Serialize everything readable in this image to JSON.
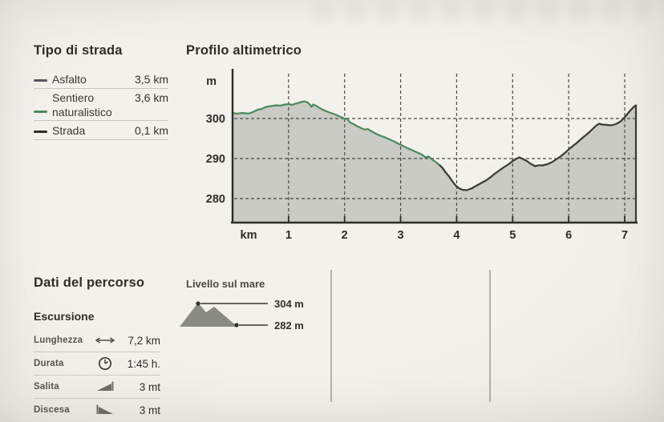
{
  "road_type_legend": {
    "title": "Tipo di strada",
    "items": [
      {
        "label": "Asfalto",
        "value": "3,5 km",
        "color": "#55555a"
      },
      {
        "label_line1": "Sentiero",
        "label_line2": "naturalistico",
        "value": "3,6 km",
        "color": "#4a8a5f"
      },
      {
        "label": "Strada",
        "value": "0,1 km",
        "color": "#2d2d2b"
      }
    ]
  },
  "elevation_chart": {
    "title": "Profilo altimetrico"
  },
  "chart_data": {
    "type": "area",
    "title": "Profilo altimetrico",
    "x_axis_unit": "km",
    "y_axis_unit": "m",
    "x_ticks": [
      1,
      2,
      3,
      4,
      5,
      6,
      7
    ],
    "y_ticks": [
      300,
      290,
      280
    ],
    "xlim": [
      0,
      7.2
    ],
    "ylim": [
      273,
      312
    ],
    "grid": "dashed-both-axes",
    "legend_position": "outside-left",
    "area_fill_color": "#c9cbc4",
    "axis_color": "#2c2c2a",
    "grid_color": "#4a4a46",
    "segments": [
      {
        "name": "Sentiero naturalistico",
        "color": "#4a8a5f",
        "from_km": 0,
        "to_km": 3.75
      },
      {
        "name": "Asfalto / Strada",
        "color": "#3a3a37",
        "from_km": 3.75,
        "to_km": 7.2
      }
    ],
    "profile_points": [
      [
        0,
        301.4
      ],
      [
        0.08,
        301.2
      ],
      [
        0.18,
        301.4
      ],
      [
        0.28,
        301.2
      ],
      [
        0.36,
        301.6
      ],
      [
        0.45,
        302.2
      ],
      [
        0.52,
        302.4
      ],
      [
        0.6,
        302.9
      ],
      [
        0.68,
        303.1
      ],
      [
        0.78,
        303.3
      ],
      [
        0.85,
        303.2
      ],
      [
        0.93,
        303.5
      ],
      [
        1.0,
        303.6
      ],
      [
        1.06,
        303.4
      ],
      [
        1.12,
        303.7
      ],
      [
        1.2,
        304.0
      ],
      [
        1.28,
        304.3
      ],
      [
        1.33,
        304.1
      ],
      [
        1.38,
        303.5
      ],
      [
        1.41,
        302.9
      ],
      [
        1.44,
        303.5
      ],
      [
        1.5,
        303.1
      ],
      [
        1.58,
        302.4
      ],
      [
        1.66,
        301.9
      ],
      [
        1.75,
        301.4
      ],
      [
        1.85,
        300.9
      ],
      [
        1.95,
        300.3
      ],
      [
        2.0,
        299.9
      ],
      [
        2.04,
        300.0
      ],
      [
        2.1,
        299.0
      ],
      [
        2.16,
        298.6
      ],
      [
        2.22,
        298.1
      ],
      [
        2.3,
        297.6
      ],
      [
        2.36,
        297.2
      ],
      [
        2.41,
        297.4
      ],
      [
        2.48,
        296.8
      ],
      [
        2.56,
        296.2
      ],
      [
        2.64,
        295.7
      ],
      [
        2.72,
        295.3
      ],
      [
        2.8,
        294.8
      ],
      [
        2.88,
        294.3
      ],
      [
        2.96,
        293.7
      ],
      [
        3.05,
        293.1
      ],
      [
        3.14,
        292.5
      ],
      [
        3.22,
        292.0
      ],
      [
        3.3,
        291.5
      ],
      [
        3.38,
        291.0
      ],
      [
        3.44,
        290.3
      ],
      [
        3.5,
        290.5
      ],
      [
        3.56,
        289.8
      ],
      [
        3.63,
        289.1
      ],
      [
        3.7,
        288.3
      ],
      [
        3.75,
        287.6
      ],
      [
        3.8,
        286.6
      ],
      [
        3.86,
        285.6
      ],
      [
        3.92,
        284.4
      ],
      [
        3.98,
        283.3
      ],
      [
        4.04,
        282.6
      ],
      [
        4.1,
        282.2
      ],
      [
        4.18,
        282.1
      ],
      [
        4.26,
        282.5
      ],
      [
        4.35,
        283.2
      ],
      [
        4.44,
        283.9
      ],
      [
        4.52,
        284.5
      ],
      [
        4.6,
        285.3
      ],
      [
        4.68,
        286.2
      ],
      [
        4.76,
        287.0
      ],
      [
        4.84,
        287.8
      ],
      [
        4.92,
        288.5
      ],
      [
        5.0,
        289.4
      ],
      [
        5.06,
        289.9
      ],
      [
        5.12,
        290.3
      ],
      [
        5.18,
        289.9
      ],
      [
        5.25,
        289.4
      ],
      [
        5.32,
        288.7
      ],
      [
        5.4,
        288.1
      ],
      [
        5.46,
        288.3
      ],
      [
        5.54,
        288.3
      ],
      [
        5.62,
        288.6
      ],
      [
        5.7,
        289.1
      ],
      [
        5.78,
        289.8
      ],
      [
        5.86,
        290.6
      ],
      [
        5.94,
        291.5
      ],
      [
        6.0,
        292.3
      ],
      [
        6.08,
        293.2
      ],
      [
        6.16,
        294.1
      ],
      [
        6.24,
        295.1
      ],
      [
        6.32,
        296.0
      ],
      [
        6.4,
        297.0
      ],
      [
        6.48,
        298.1
      ],
      [
        6.54,
        298.7
      ],
      [
        6.6,
        298.5
      ],
      [
        6.68,
        298.4
      ],
      [
        6.76,
        298.3
      ],
      [
        6.84,
        298.6
      ],
      [
        6.92,
        299.2
      ],
      [
        6.98,
        300.0
      ],
      [
        7.04,
        301.0
      ],
      [
        7.1,
        302.0
      ],
      [
        7.16,
        302.9
      ]
    ]
  },
  "route_data": {
    "title": "Dati del percorso",
    "subtitle": "Escursione",
    "rows": [
      {
        "label": "Lunghezza",
        "icon": "length-arrow-icon",
        "value": "7,2 km"
      },
      {
        "label": "Durata",
        "icon": "clock-icon",
        "value": "1:45 h."
      },
      {
        "label": "Salita",
        "icon": "ascent-icon",
        "value": "3 mt"
      },
      {
        "label": "Discesa",
        "icon": "descent-icon",
        "value": "3 mt"
      }
    ]
  },
  "sea_level": {
    "title": "Livello sul mare",
    "max_label": "304 m",
    "min_label": "282 m"
  }
}
